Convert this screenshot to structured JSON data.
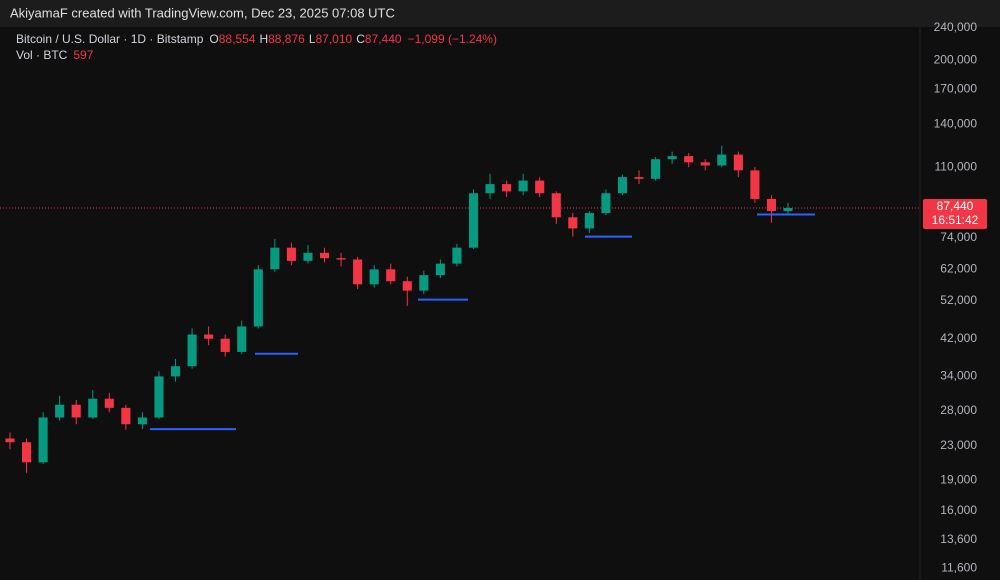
{
  "header": {
    "text": "AkiyamaF created with TradingView.com, Dec 23, 2025 07:08 UTC"
  },
  "chart_data": {
    "type": "candlestick",
    "legend": {
      "symbol": "Bitcoin / U.S. Dollar · 1D · Bitstamp",
      "ohlc": [
        {
          "key": "O",
          "value": "88,554"
        },
        {
          "key": "H",
          "value": "88,876"
        },
        {
          "key": "L",
          "value": "87,010"
        },
        {
          "key": "C",
          "value": "87,440"
        }
      ],
      "change": "−1,099 (−1.24%)",
      "volume_label": "Vol · BTC",
      "volume": "597"
    },
    "log_scale": true,
    "grid": false,
    "up_color": "#089981",
    "down_color": "#f23645",
    "open": [
      24000,
      23500,
      21000,
      27000,
      29000,
      27000,
      30000,
      28500,
      26000,
      27000,
      34000,
      36000,
      43000,
      42000,
      39000,
      45000,
      62000,
      70000,
      65000,
      68000,
      66000,
      65500,
      57000,
      62000,
      58000,
      55000,
      60000,
      64000,
      70000,
      95000,
      100000,
      96000,
      102000,
      95000,
      83000,
      78000,
      85000,
      95000,
      104000,
      103000,
      115000,
      117000,
      113000,
      111000,
      118000,
      108000,
      92000,
      86000
    ],
    "high": [
      24800,
      24000,
      27800,
      30500,
      29800,
      31500,
      31000,
      29000,
      27800,
      35000,
      37500,
      44500,
      45000,
      43000,
      46500,
      63500,
      73500,
      72000,
      71000,
      70000,
      68000,
      66500,
      63500,
      64000,
      59500,
      61500,
      65500,
      71500,
      97000,
      106000,
      102000,
      106000,
      104000,
      96000,
      85000,
      86000,
      97000,
      105500,
      108000,
      116500,
      120000,
      119000,
      115000,
      124000,
      120000,
      110000,
      94000,
      90000
    ],
    "low": [
      22600,
      19800,
      20800,
      26500,
      26000,
      26800,
      27800,
      25200,
      25300,
      26800,
      33000,
      35500,
      40500,
      38000,
      38500,
      44500,
      61000,
      63500,
      64000,
      64500,
      63000,
      55500,
      56000,
      57000,
      50500,
      54000,
      59000,
      63000,
      69500,
      92000,
      93000,
      94000,
      93000,
      80000,
      74500,
      76000,
      84000,
      94000,
      100000,
      102000,
      112000,
      110000,
      108000,
      110000,
      104000,
      90000,
      80500,
      84000
    ],
    "close": [
      23500,
      21000,
      27000,
      29000,
      27000,
      30000,
      28500,
      26000,
      27000,
      34000,
      36000,
      43000,
      42000,
      39000,
      45000,
      62000,
      70000,
      65000,
      68000,
      66000,
      65500,
      57000,
      62000,
      58000,
      55000,
      60000,
      64000,
      70000,
      95000,
      100000,
      96000,
      102000,
      95000,
      83000,
      78000,
      85000,
      95000,
      104000,
      103000,
      115000,
      117000,
      113000,
      111000,
      118000,
      108000,
      92000,
      86000,
      87440
    ],
    "support_levels": [
      25300,
      38600,
      52300,
      74500,
      84300
    ],
    "support_color": "#2962ff",
    "last_price": {
      "value": 87440,
      "label": "87,440"
    },
    "countdown": "16:51:42",
    "ylim": [
      10850,
      241400
    ],
    "yticks": [
      {
        "value": 240000,
        "label": "240,000"
      },
      {
        "value": 200000,
        "label": "200,000"
      },
      {
        "value": 170000,
        "label": "170,000"
      },
      {
        "value": 140000,
        "label": "140,000"
      },
      {
        "value": 110000,
        "label": "110,000"
      },
      {
        "value": 74000,
        "label": "74,000"
      },
      {
        "value": 62000,
        "label": "62,000"
      },
      {
        "value": 52000,
        "label": "52,000"
      },
      {
        "value": 42000,
        "label": "42,000"
      },
      {
        "value": 34000,
        "label": "34,000"
      },
      {
        "value": 28000,
        "label": "28,000"
      },
      {
        "value": 23000,
        "label": "23,000"
      },
      {
        "value": 19000,
        "label": "19,000"
      },
      {
        "value": 16000,
        "label": "16,000"
      },
      {
        "value": 13600,
        "label": "13,600"
      },
      {
        "value": 11600,
        "label": "11,600"
      }
    ]
  }
}
